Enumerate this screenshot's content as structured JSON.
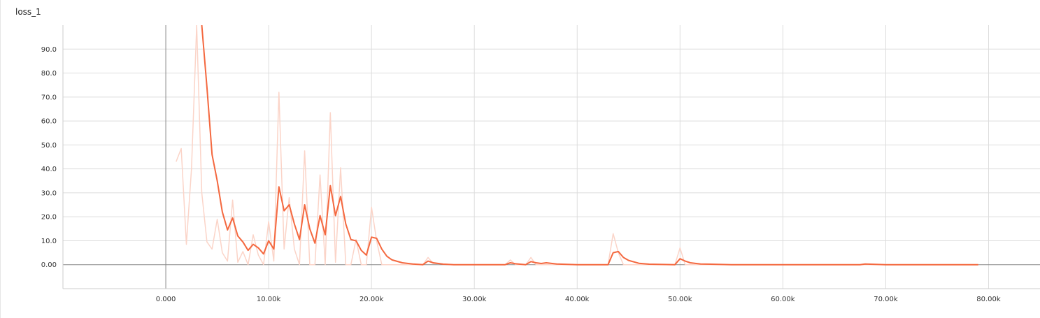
{
  "card": {
    "title": "loss_1"
  },
  "chart_data": {
    "type": "line",
    "title": "loss_1",
    "xlabel": "",
    "ylabel": "",
    "xlim": [
      -10000,
      85000
    ],
    "ylim": [
      -10,
      100
    ],
    "x_ticks": [
      0,
      10000,
      20000,
      30000,
      40000,
      50000,
      60000,
      70000,
      80000
    ],
    "x_tick_labels": [
      "0.000",
      "10.00k",
      "20.00k",
      "30.00k",
      "40.00k",
      "50.00k",
      "60.00k",
      "70.00k",
      "80.00k"
    ],
    "y_ticks": [
      0,
      10,
      20,
      30,
      40,
      50,
      60,
      70,
      80,
      90
    ],
    "y_tick_labels": [
      "0.00",
      "10.0",
      "20.0",
      "30.0",
      "40.0",
      "50.0",
      "60.0",
      "70.0",
      "80.0",
      "90.0"
    ],
    "grid": true,
    "colors": {
      "smoothed": "#f4683f",
      "raw": "#fbd4c8",
      "grid": "#dddddd",
      "axis": "#999999"
    },
    "series": [
      {
        "role": "raw",
        "x": [
          1000,
          1500,
          2000,
          2500,
          3000,
          3500,
          4000,
          4500,
          5000,
          5500,
          6000,
          6500,
          7000,
          7500,
          8000,
          8500,
          9000,
          9500,
          10000,
          10500,
          11000,
          11500,
          12000,
          12500,
          13000,
          13500,
          14000,
          14500,
          15000,
          15500,
          16000,
          16500,
          17000,
          17500,
          18000,
          18500,
          19000,
          19500,
          20000,
          20500,
          21000,
          22000,
          23000,
          24000,
          25000,
          25500,
          26000,
          28000,
          30000,
          33000,
          33500,
          34000,
          35000,
          35500,
          36000,
          37000,
          38000,
          40000,
          43000,
          43500,
          44000,
          44500,
          45000,
          47000,
          49500,
          50000,
          50500,
          52000,
          55000,
          60000,
          65000,
          67500,
          68000,
          70000,
          75000,
          79000
        ],
        "y": [
          43,
          48.5,
          8.5,
          40,
          100,
          30,
          9.5,
          6.5,
          19,
          5,
          1.5,
          27,
          1,
          5.5,
          0,
          12.5,
          4,
          0,
          18,
          1.5,
          72,
          6.5,
          28,
          6.5,
          0,
          47.5,
          0,
          0,
          37.5,
          0,
          63.5,
          1,
          40.5,
          0,
          0,
          10.5,
          0,
          0,
          24,
          10,
          0,
          0,
          0,
          0,
          0,
          3,
          0.5,
          0,
          0,
          0,
          2,
          0,
          0,
          3,
          0,
          0,
          0,
          0,
          0,
          13,
          5,
          0,
          0,
          0,
          0,
          7,
          0,
          0,
          0,
          0,
          0,
          0,
          0,
          0,
          0,
          0
        ]
      },
      {
        "role": "smoothed",
        "x": [
          3500,
          4000,
          4500,
          5000,
          5500,
          6000,
          6500,
          7000,
          7500,
          8000,
          8500,
          9000,
          9500,
          10000,
          10500,
          11000,
          11500,
          12000,
          12500,
          13000,
          13500,
          14000,
          14500,
          15000,
          15500,
          16000,
          16500,
          17000,
          17500,
          18000,
          18500,
          19000,
          19500,
          20000,
          20500,
          21000,
          21500,
          22000,
          23000,
          24000,
          25000,
          25500,
          26000,
          27000,
          28000,
          30000,
          33000,
          33500,
          34000,
          35000,
          35500,
          36000,
          36500,
          37000,
          38000,
          40000,
          43000,
          43500,
          44000,
          44500,
          45000,
          46000,
          47000,
          49500,
          50000,
          50500,
          51000,
          52000,
          55000,
          60000,
          65000,
          67500,
          68000,
          70000,
          75000,
          79000
        ],
        "y": [
          100,
          74,
          46,
          35,
          22,
          14.5,
          19.5,
          12,
          9.5,
          6,
          8.5,
          7,
          4.5,
          10,
          6.5,
          32.5,
          22.5,
          25,
          17,
          10.5,
          25,
          15,
          9,
          20.5,
          12.5,
          33,
          20.5,
          28.5,
          17,
          10.5,
          10,
          6,
          4,
          11.5,
          11,
          6.5,
          3.5,
          2,
          0.8,
          0.3,
          0,
          1.5,
          0.8,
          0.2,
          0,
          0,
          0,
          0.8,
          0.4,
          0,
          1.3,
          0.8,
          0.5,
          0.8,
          0.3,
          0,
          0,
          5,
          5.5,
          3,
          1.8,
          0.6,
          0.2,
          0,
          2.5,
          1.5,
          0.8,
          0.3,
          0,
          0,
          0,
          0,
          0.3,
          0,
          0,
          0
        ]
      }
    ]
  }
}
